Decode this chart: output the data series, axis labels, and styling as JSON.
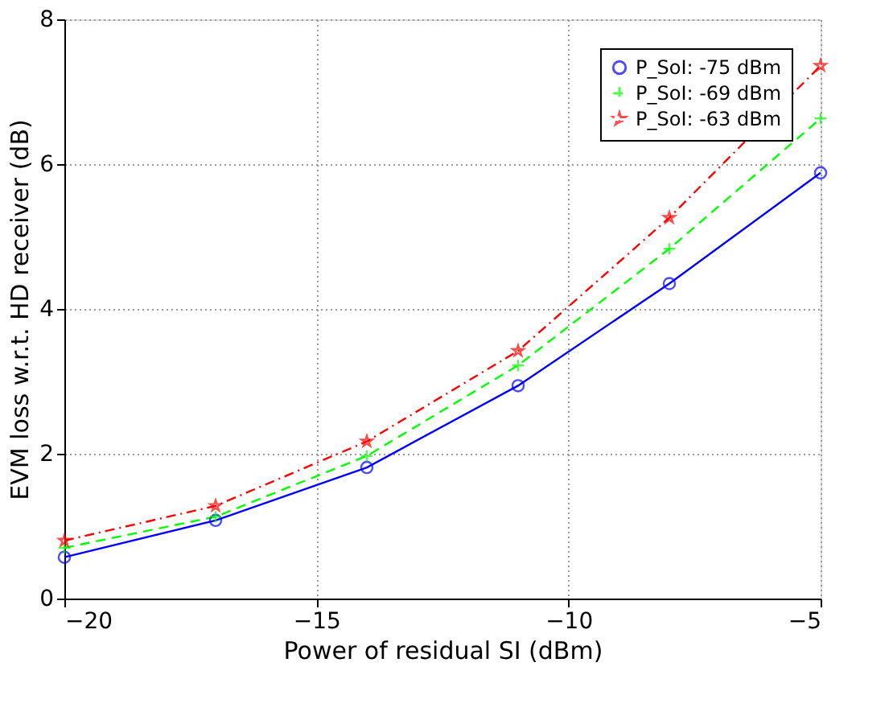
{
  "chart_data": {
    "type": "line",
    "xlabel": "Power of residual SI (dBm)",
    "ylabel": "EVM loss w.r.t. HD receiver (dB)",
    "x": [
      -20,
      -17,
      -14,
      -11,
      -8,
      -5
    ],
    "series": [
      {
        "name": "P_SoI: -75 dBm",
        "color": "#0000ff",
        "marker": "circle",
        "line_style": "solid",
        "values": [
          0.57,
          1.08,
          1.81,
          2.94,
          4.35,
          5.88
        ]
      },
      {
        "name": "P_SoI: -69 dBm",
        "color": "#00ff00",
        "marker": "cross",
        "line_style": "dashed",
        "values": [
          0.7,
          1.13,
          1.97,
          3.22,
          4.83,
          6.63
        ]
      },
      {
        "name": "P_SoI: -63 dBm",
        "color": "#ff0000",
        "marker": "star",
        "line_style": "dotted",
        "values": [
          0.8,
          1.28,
          2.17,
          3.42,
          5.26,
          7.36
        ]
      }
    ],
    "xlim": [
      -20,
      -5
    ],
    "xticks": [
      -20,
      -15,
      -10,
      -5
    ],
    "ylim": [
      0,
      8
    ],
    "yticks": [
      0,
      2,
      4,
      6,
      8
    ],
    "grid": true,
    "legend": "top right"
  }
}
